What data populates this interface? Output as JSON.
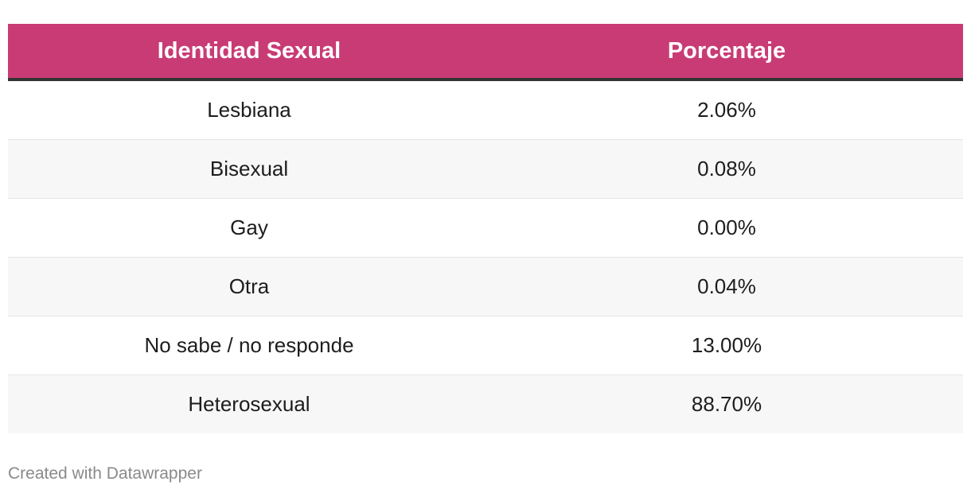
{
  "colors": {
    "header_background": "#c93b75",
    "header_text": "#ffffff",
    "stripe": "#f7f7f7"
  },
  "chart_data": {
    "type": "table",
    "columns": [
      "Identidad Sexual",
      "Porcentaje"
    ],
    "rows": [
      {
        "label": "Lesbiana",
        "value": "2.06%"
      },
      {
        "label": "Bisexual",
        "value": "0.08%"
      },
      {
        "label": "Gay",
        "value": "0.00%"
      },
      {
        "label": "Otra",
        "value": "0.04%"
      },
      {
        "label": "No sabe / no responde",
        "value": "13.00%"
      },
      {
        "label": "Heterosexual",
        "value": "88.70%"
      }
    ],
    "values": [
      2.06,
      0.08,
      0.0,
      0.04,
      13.0,
      88.7
    ]
  },
  "footer": {
    "credit": "Created with Datawrapper"
  }
}
